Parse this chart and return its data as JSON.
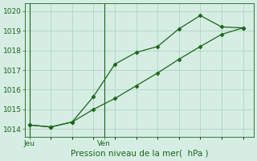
{
  "line1_x": [
    0,
    1,
    2,
    3,
    4,
    5,
    6,
    7,
    8,
    9,
    10
  ],
  "line1_y": [
    1014.2,
    1014.1,
    1014.35,
    1015.65,
    1017.3,
    1017.9,
    1018.2,
    1019.1,
    1019.78,
    1019.2,
    1019.15
  ],
  "line2_x": [
    0,
    1,
    2,
    3,
    4,
    5,
    6,
    7,
    8,
    9,
    10
  ],
  "line2_y": [
    1014.2,
    1014.1,
    1014.35,
    1015.0,
    1015.55,
    1016.2,
    1016.85,
    1017.55,
    1018.2,
    1018.82,
    1019.15
  ],
  "line_color": "#1a6618",
  "background_color": "#d6ede4",
  "grid_color": "#afd4c4",
  "xlabel": "Pression niveau de la mer(  hPa )",
  "ylim": [
    1013.6,
    1020.4
  ],
  "yticks": [
    1014,
    1015,
    1016,
    1017,
    1018,
    1019,
    1020
  ],
  "jeu_x": 0,
  "ven_x": 3.5,
  "tick_fontsize": 6.5,
  "label_fontsize": 7.5,
  "xlim": [
    -0.2,
    10.5
  ]
}
